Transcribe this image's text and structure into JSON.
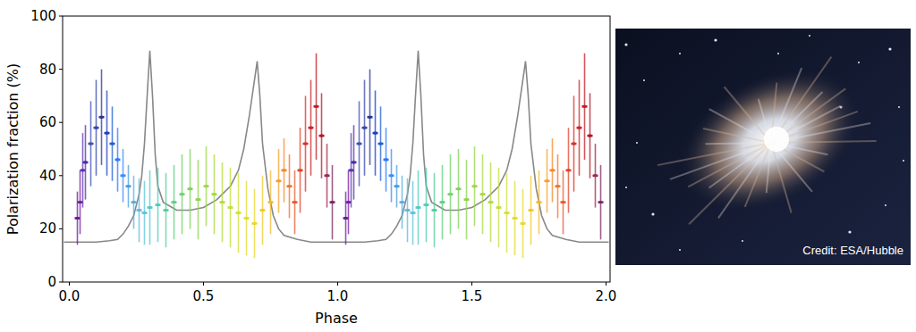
{
  "chart_data": {
    "type": "scatter",
    "x_label": "Phase",
    "y_label": "Polarization fraction (%)",
    "xlim": [
      -0.025,
      2.015
    ],
    "ylim": [
      0,
      100
    ],
    "xticks": [
      {
        "value": 0,
        "label": "0.0"
      },
      0.5,
      {
        "value": 1,
        "label": "1.0"
      },
      1.5,
      {
        "value": 2,
        "label": "2.0"
      }
    ],
    "yticks": [
      0,
      20,
      40,
      60,
      80,
      100
    ],
    "grid": false,
    "series": [
      {
        "type": "scatter",
        "marker": "dot",
        "x": [
          0.03,
          0.04,
          0.05,
          0.06,
          0.08,
          0.1,
          0.12,
          0.14,
          0.16,
          0.18,
          0.2,
          0.22,
          0.24,
          0.26,
          0.28,
          0.3,
          0.33,
          0.36,
          0.39,
          0.42,
          0.45,
          0.48,
          0.51,
          0.54,
          0.57,
          0.6,
          0.63,
          0.66,
          0.69,
          0.72,
          0.75,
          0.78,
          0.8,
          0.82,
          0.84,
          0.86,
          0.88,
          0.9,
          0.92,
          0.94,
          0.96,
          0.98,
          1.03,
          1.04,
          1.05,
          1.06,
          1.08,
          1.1,
          1.12,
          1.14,
          1.16,
          1.18,
          1.2,
          1.22,
          1.24,
          1.26,
          1.28,
          1.3,
          1.33,
          1.36,
          1.39,
          1.42,
          1.45,
          1.48,
          1.51,
          1.54,
          1.57,
          1.6,
          1.63,
          1.66,
          1.69,
          1.72,
          1.75,
          1.78,
          1.8,
          1.82,
          1.84,
          1.86,
          1.88,
          1.9,
          1.92,
          1.94,
          1.96,
          1.98
        ],
        "values": [
          24,
          30,
          42,
          45,
          52,
          58,
          62,
          56,
          52,
          46,
          40,
          36,
          30,
          27,
          26,
          28,
          29,
          27,
          30,
          33,
          35,
          31,
          36,
          33,
          30,
          28,
          26,
          24,
          22,
          27,
          30,
          38,
          42,
          36,
          30,
          42,
          52,
          58,
          66,
          55,
          40,
          30,
          24,
          30,
          42,
          45,
          52,
          58,
          62,
          56,
          52,
          46,
          40,
          36,
          30,
          27,
          26,
          28,
          29,
          27,
          30,
          33,
          35,
          31,
          36,
          33,
          30,
          28,
          26,
          24,
          22,
          27,
          30,
          38,
          42,
          36,
          30,
          42,
          52,
          58,
          66,
          55,
          40,
          30
        ],
        "errors": [
          10,
          12,
          14,
          14,
          16,
          18,
          18,
          16,
          14,
          12,
          10,
          8,
          10,
          12,
          12,
          14,
          14,
          14,
          14,
          15,
          15,
          15,
          15,
          15,
          15,
          15,
          15,
          14,
          13,
          13,
          12,
          12,
          12,
          12,
          12,
          16,
          18,
          18,
          20,
          16,
          12,
          14,
          10,
          12,
          14,
          14,
          16,
          18,
          18,
          16,
          14,
          12,
          10,
          8,
          10,
          12,
          12,
          14,
          14,
          14,
          14,
          15,
          15,
          15,
          15,
          15,
          15,
          15,
          15,
          14,
          13,
          13,
          12,
          12,
          12,
          12,
          12,
          16,
          18,
          18,
          20,
          16,
          12,
          14
        ],
        "x_errors": [
          0.01,
          0.01,
          0.01,
          0.01,
          0.01,
          0.01,
          0.01,
          0.01,
          0.01,
          0.01,
          0.01,
          0.01,
          0.01,
          0.01,
          0.01,
          0.01,
          0.01,
          0.01,
          0.01,
          0.01,
          0.01,
          0.01,
          0.01,
          0.01,
          0.01,
          0.01,
          0.01,
          0.01,
          0.01,
          0.01,
          0.01,
          0.01,
          0.01,
          0.01,
          0.01,
          0.01,
          0.01,
          0.01,
          0.01,
          0.01,
          0.01,
          0.01,
          0.01,
          0.01,
          0.01,
          0.01,
          0.01,
          0.01,
          0.01,
          0.01,
          0.01,
          0.01,
          0.01,
          0.01,
          0.01,
          0.01,
          0.01,
          0.01,
          0.01,
          0.01,
          0.01,
          0.01,
          0.01,
          0.01,
          0.01,
          0.01,
          0.01,
          0.01,
          0.01,
          0.01,
          0.01,
          0.01,
          0.01,
          0.01,
          0.01,
          0.01,
          0.01,
          0.01,
          0.01,
          0.01,
          0.01,
          0.01,
          0.01,
          0.01
        ],
        "colors": [
          "#6a1b9a",
          "#7b1fa2",
          "#5e35b1",
          "#512da8",
          "#3f51b5",
          "#3949ab",
          "#283593",
          "#1e3fbf",
          "#1f5fd0",
          "#2979ff",
          "#3d8bfd",
          "#4a9de0",
          "#5aaee0",
          "#63b8e0",
          "#5fc4d8",
          "#55c9c9",
          "#4fcdb5",
          "#55cf9a",
          "#60d080",
          "#6fd46a",
          "#7dd45a",
          "#8ed44f",
          "#9bd748",
          "#a8da40",
          "#b6dc3a",
          "#c6df34",
          "#d4e030",
          "#e0dd2c",
          "#ead82a",
          "#f0c92a",
          "#f4b82b",
          "#f6a02c",
          "#f4892d",
          "#f0732e",
          "#e85c2e",
          "#e0462c",
          "#d6332a",
          "#cc2428",
          "#bf1d26",
          "#b01a28",
          "#9c2a4a",
          "#7a2a6a",
          "#6a1b9a",
          "#7b1fa2",
          "#5e35b1",
          "#512da8",
          "#3f51b5",
          "#3949ab",
          "#283593",
          "#1e3fbf",
          "#1f5fd0",
          "#2979ff",
          "#3d8bfd",
          "#4a9de0",
          "#5aaee0",
          "#63b8e0",
          "#5fc4d8",
          "#55c9c9",
          "#4fcdb5",
          "#55cf9a",
          "#60d080",
          "#6fd46a",
          "#7dd45a",
          "#8ed44f",
          "#9bd748",
          "#a8da40",
          "#b6dc3a",
          "#c6df34",
          "#d4e030",
          "#e0dd2c",
          "#ead82a",
          "#f0c92a",
          "#f4b82b",
          "#f6a02c",
          "#f4892d",
          "#f0732e",
          "#e85c2e",
          "#e0462c",
          "#d6332a",
          "#cc2428",
          "#bf1d26",
          "#b01a28",
          "#9c2a4a",
          "#7a2a6a"
        ]
      },
      {
        "type": "line",
        "color": "#888888",
        "line_style": "solid",
        "x": [
          -0.02,
          0,
          0.05,
          0.1,
          0.15,
          0.18,
          0.2,
          0.22,
          0.24,
          0.26,
          0.27,
          0.28,
          0.29,
          0.3,
          0.31,
          0.32,
          0.33,
          0.35,
          0.4,
          0.45,
          0.5,
          0.55,
          0.6,
          0.63,
          0.65,
          0.67,
          0.69,
          0.7,
          0.71,
          0.72,
          0.74,
          0.76,
          0.78,
          0.8,
          0.85,
          0.9,
          0.95,
          1,
          1.05,
          1.1,
          1.15,
          1.18,
          1.2,
          1.22,
          1.24,
          1.26,
          1.27,
          1.28,
          1.29,
          1.3,
          1.31,
          1.32,
          1.33,
          1.35,
          1.4,
          1.45,
          1.5,
          1.55,
          1.6,
          1.63,
          1.65,
          1.67,
          1.69,
          1.7,
          1.71,
          1.72,
          1.74,
          1.76,
          1.78,
          1.8,
          1.85,
          1.9,
          1.95,
          2,
          2.01
        ],
        "values": [
          15,
          15,
          15,
          15,
          15.5,
          16,
          18,
          21,
          25,
          33,
          40,
          52,
          70,
          87,
          70,
          48,
          36,
          30,
          27,
          27,
          28,
          31,
          36,
          42,
          50,
          62,
          76,
          83,
          70,
          52,
          35,
          25,
          20,
          17.5,
          16,
          15,
          15,
          15,
          15,
          15,
          15.5,
          16,
          18,
          21,
          25,
          33,
          40,
          52,
          70,
          87,
          70,
          48,
          36,
          30,
          27,
          27,
          28,
          31,
          36,
          42,
          50,
          62,
          76,
          83,
          70,
          52,
          35,
          25,
          20,
          17.5,
          16,
          15,
          15,
          15,
          15
        ]
      }
    ]
  },
  "image_panel": {
    "credit": "Credit: ESA/Hubble"
  }
}
